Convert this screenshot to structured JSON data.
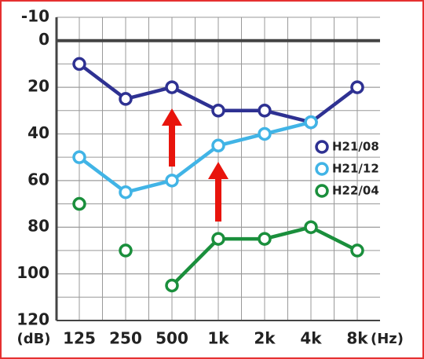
{
  "chart_data": {
    "type": "line",
    "categories": [
      "125",
      "250",
      "500",
      "1k",
      "2k",
      "4k",
      "8k"
    ],
    "xlabel": "(Hz)",
    "ylabel": "(dB)",
    "ylim": [
      -10,
      120
    ],
    "y_inverted": true,
    "yticks": [
      -10,
      0,
      20,
      40,
      60,
      80,
      100,
      120
    ],
    "minor_grid_step": 10,
    "grid": true,
    "legend": "right",
    "series": [
      {
        "name": "H21/08",
        "color": "#2e3192",
        "values": [
          10,
          25,
          20,
          30,
          30,
          35,
          20
        ],
        "line_start_index": 0
      },
      {
        "name": "H21/12",
        "color": "#41b4e6",
        "values": [
          50,
          65,
          60,
          45,
          40,
          35,
          null
        ],
        "line_start_index": 0
      },
      {
        "name": "H22/04",
        "color": "#1a8f3c",
        "values": [
          70,
          90,
          105,
          85,
          85,
          80,
          90
        ],
        "line_start_index": 2
      }
    ]
  }
}
